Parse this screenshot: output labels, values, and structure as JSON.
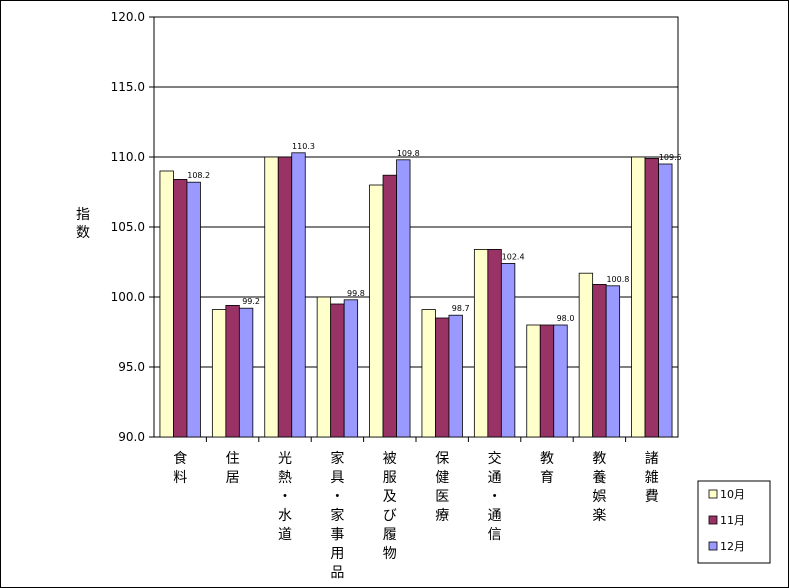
{
  "chart_data": {
    "type": "bar",
    "ylabel": "指数",
    "ylim": [
      90.0,
      120.0
    ],
    "yticks": [
      "120.0",
      "115.0",
      "110.0",
      "105.0",
      "100.0",
      "95.0",
      "90.0"
    ],
    "grid": true,
    "legend_position": "bottom-right",
    "categories": [
      "食料",
      "住居",
      "光熱・水道",
      "家具・家事用品",
      "被服及び履物",
      "保健医療",
      "交通・通信",
      "教育",
      "教養娯楽",
      "諸雑費"
    ],
    "series": [
      {
        "name": "10月",
        "color": "#FFFFCC",
        "values": [
          109.0,
          99.1,
          110.0,
          100.0,
          108.0,
          99.1,
          103.4,
          98.0,
          101.7,
          110.0
        ]
      },
      {
        "name": "11月",
        "color": "#993366",
        "values": [
          108.4,
          99.4,
          110.0,
          99.5,
          108.7,
          98.5,
          103.4,
          98.0,
          100.9,
          109.9
        ]
      },
      {
        "name": "12月",
        "color": "#9999FF",
        "values": [
          108.2,
          99.2,
          110.3,
          99.8,
          109.8,
          98.7,
          102.4,
          98.0,
          100.8,
          109.5
        ]
      }
    ],
    "data_labels": [
      "108.2",
      "99.2",
      "110.3",
      "99.8",
      "109.8",
      "98.7",
      "102.4",
      "98.0",
      "100.8",
      "109.5"
    ]
  }
}
